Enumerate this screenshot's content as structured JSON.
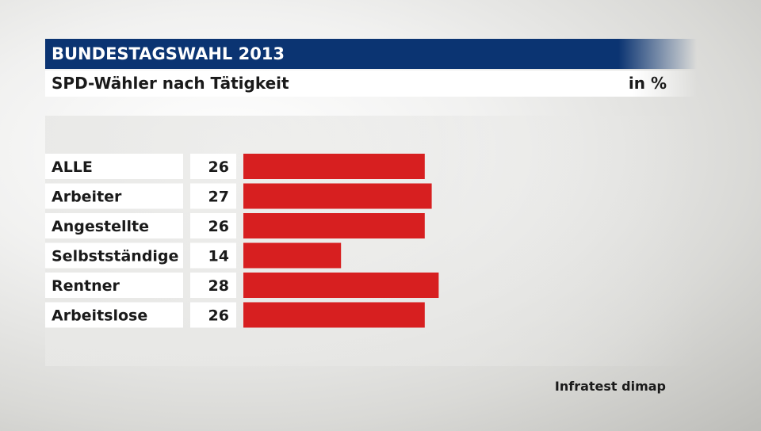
{
  "header": {
    "title": "BUNDESTAGSWAHL 2013",
    "subtitle": "SPD-Wähler nach Tätigkeit",
    "unit": "in %"
  },
  "source": "Infratest dimap",
  "colors": {
    "title_bar": "#0b3472",
    "bar": "#d71f20"
  },
  "chart_data": {
    "type": "bar",
    "orientation": "horizontal",
    "title": "SPD-Wähler nach Tätigkeit",
    "categories": [
      "ALLE",
      "Arbeiter",
      "Angestellte",
      "Selbstständige",
      "Rentner",
      "Arbeitslose"
    ],
    "values": [
      26,
      27,
      26,
      14,
      28,
      26
    ],
    "unit": "in %",
    "xlim": [
      0,
      100
    ],
    "grid": false,
    "legend": "none"
  }
}
